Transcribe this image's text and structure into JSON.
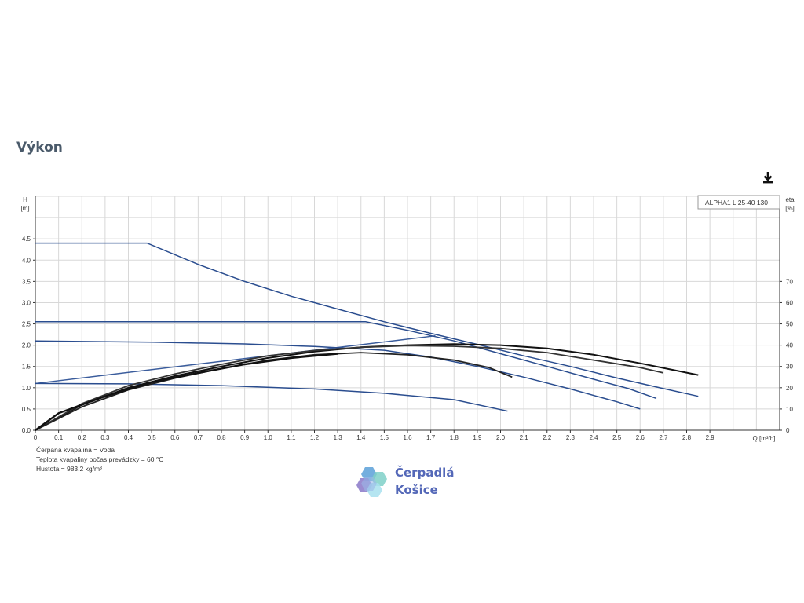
{
  "page": {
    "title": "Výkon"
  },
  "download": {
    "icon": "download-icon"
  },
  "notes": [
    "Čerpaná kvapalina = Voda",
    "Teplota kvapaliny počas prevádzky = 60 °C",
    "Hustota = 983.2 kg/m³"
  ],
  "logo": {
    "line1": "Čerpadlá",
    "line2": "Košice"
  },
  "chart_data": {
    "type": "line",
    "title": "",
    "legend": "ALPHA1 L 25-40  130",
    "xlabel": "Q [m³/h]",
    "ylabel_left": "H\n[m]",
    "ylabel_right": "eta\n[%]",
    "xlim": [
      0,
      3.2
    ],
    "ylim": [
      0,
      5.5
    ],
    "y2lim": [
      0,
      110
    ],
    "grid": true,
    "x_ticks": [
      "0",
      "0,1",
      "0,2",
      "0,3",
      "0,4",
      "0,5",
      "0,6",
      "0,7",
      "0,8",
      "0,9",
      "1,0",
      "1,1",
      "1,2",
      "1,3",
      "1,4",
      "1,5",
      "1,6",
      "1,7",
      "1,8",
      "1,9",
      "2,0",
      "2,1",
      "2,2",
      "2,3",
      "2,4",
      "2,5",
      "2,6",
      "2,7",
      "2,8",
      "2,9"
    ],
    "y_ticks": [
      "0.0",
      "0.5",
      "1.0",
      "1.5",
      "2.0",
      "2.5",
      "3.0",
      "3.5",
      "4.0",
      "4.5"
    ],
    "y2_ticks": [
      "0",
      "10",
      "20",
      "30",
      "40",
      "50",
      "60",
      "70"
    ],
    "head_series": [
      {
        "points": [
          [
            0,
            4.4
          ],
          [
            0.48,
            4.4
          ],
          [
            0.7,
            3.9
          ],
          [
            0.9,
            3.5
          ],
          [
            1.1,
            3.15
          ],
          [
            1.3,
            2.85
          ],
          [
            1.5,
            2.55
          ],
          [
            1.7,
            2.28
          ],
          [
            1.9,
            2.02
          ],
          [
            2.1,
            1.75
          ],
          [
            2.3,
            1.5
          ],
          [
            2.5,
            1.23
          ],
          [
            2.7,
            0.98
          ],
          [
            2.85,
            0.8
          ]
        ]
      },
      {
        "points": [
          [
            0,
            2.55
          ],
          [
            1.42,
            2.55
          ],
          [
            1.6,
            2.35
          ],
          [
            1.8,
            2.1
          ],
          [
            2.0,
            1.8
          ],
          [
            2.2,
            1.5
          ],
          [
            2.4,
            1.2
          ],
          [
            2.55,
            0.98
          ],
          [
            2.67,
            0.75
          ]
        ]
      },
      {
        "points": [
          [
            0,
            2.1
          ],
          [
            0.5,
            2.07
          ],
          [
            0.9,
            2.03
          ],
          [
            1.2,
            1.97
          ],
          [
            1.5,
            1.88
          ],
          [
            1.7,
            1.72
          ],
          [
            1.9,
            1.5
          ],
          [
            2.1,
            1.25
          ],
          [
            2.3,
            0.97
          ],
          [
            2.5,
            0.67
          ],
          [
            2.6,
            0.5
          ]
        ]
      },
      {
        "points": [
          [
            0,
            1.1
          ],
          [
            0.4,
            1.09
          ],
          [
            0.8,
            1.05
          ],
          [
            1.2,
            0.97
          ],
          [
            1.5,
            0.87
          ],
          [
            1.8,
            0.72
          ],
          [
            2.03,
            0.45
          ]
        ]
      }
    ],
    "eta_series": [
      {
        "points": [
          [
            0,
            0
          ],
          [
            0.2,
            12
          ],
          [
            0.4,
            20
          ],
          [
            0.6,
            25.5
          ],
          [
            0.8,
            30
          ],
          [
            1.0,
            34
          ],
          [
            1.2,
            37
          ],
          [
            1.4,
            39
          ],
          [
            1.6,
            40
          ],
          [
            1.8,
            40.5
          ],
          [
            2.0,
            40
          ],
          [
            2.2,
            38.5
          ],
          [
            2.4,
            35.5
          ],
          [
            2.6,
            31.5
          ],
          [
            2.85,
            26
          ]
        ]
      },
      {
        "points": [
          [
            0,
            0
          ],
          [
            0.2,
            12.5
          ],
          [
            0.4,
            21
          ],
          [
            0.6,
            26.5
          ],
          [
            0.8,
            31
          ],
          [
            1.0,
            35
          ],
          [
            1.2,
            37.5
          ],
          [
            1.4,
            39
          ],
          [
            1.6,
            39.8
          ],
          [
            1.8,
            39.5
          ],
          [
            2.0,
            38.5
          ],
          [
            2.2,
            36.5
          ],
          [
            2.4,
            33
          ],
          [
            2.6,
            29.5
          ],
          [
            2.7,
            27
          ]
        ]
      },
      {
        "points": [
          [
            0,
            0
          ],
          [
            0.2,
            11
          ],
          [
            0.4,
            19
          ],
          [
            0.6,
            24.5
          ],
          [
            0.8,
            29
          ],
          [
            1.0,
            33
          ],
          [
            1.2,
            35.5
          ],
          [
            1.4,
            36.5
          ],
          [
            1.6,
            35.5
          ],
          [
            1.8,
            33
          ],
          [
            1.95,
            29.5
          ],
          [
            2.05,
            25
          ]
        ]
      },
      {
        "points": [
          [
            0,
            0
          ],
          [
            0.1,
            8
          ],
          [
            0.3,
            16
          ],
          [
            0.5,
            22.5
          ],
          [
            0.7,
            27
          ],
          [
            0.9,
            31
          ],
          [
            1.1,
            34
          ],
          [
            1.3,
            36
          ]
        ]
      }
    ],
    "hydraulic_lines": [
      {
        "points": [
          [
            0,
            1.1
          ],
          [
            1.72,
            2.22
          ]
        ]
      }
    ]
  }
}
